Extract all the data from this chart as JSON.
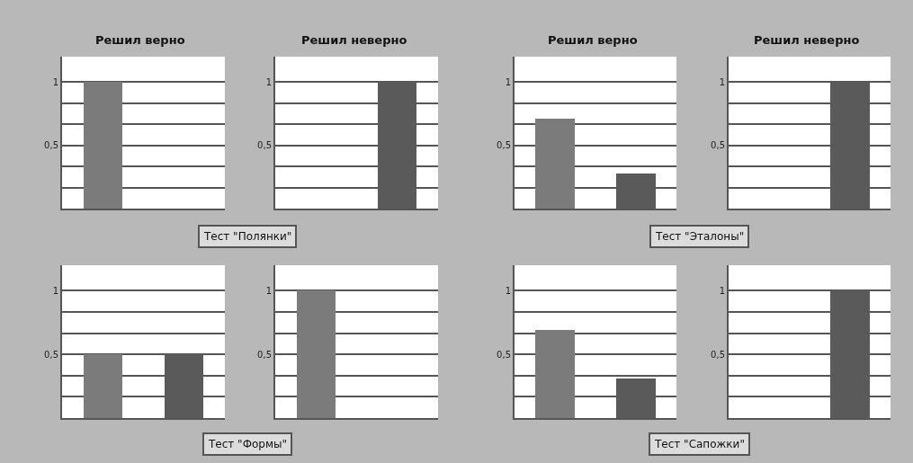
{
  "chart_data": [
    {
      "type": "bar",
      "title": "Решил верно",
      "annotations": [
        "Тест \"Полянки\""
      ],
      "categories": [
        null,
        null
      ],
      "values": [
        1,
        null
      ],
      "colors": [
        "#7b7b7b",
        "#5a5a5a"
      ],
      "ylim": [
        0,
        1.2
      ],
      "yticks": [
        {
          "value": 0,
          "label": null
        },
        {
          "value": 0.1667,
          "label": null
        },
        {
          "value": 0.3333,
          "label": null
        },
        {
          "value": 0.5,
          "label": "0,5"
        },
        {
          "value": 0.6667,
          "label": null
        },
        {
          "value": 0.8333,
          "label": null
        },
        1
      ],
      "grid": "y",
      "tick_labels": "y"
    },
    {
      "type": "bar",
      "title": "Решил неверно",
      "categories": [
        null,
        null
      ],
      "values": [
        null,
        1
      ],
      "colors": [
        "#7b7b7b",
        "#5a5a5a"
      ],
      "ylim": [
        0,
        1.2
      ],
      "yticks": [
        {
          "value": 0,
          "label": null
        },
        {
          "value": 0.1667,
          "label": null
        },
        {
          "value": 0.3333,
          "label": null
        },
        {
          "value": 0.5,
          "label": "0,5"
        },
        {
          "value": 0.6667,
          "label": null
        },
        {
          "value": 0.8333,
          "label": null
        },
        1
      ],
      "grid": "y",
      "tick_labels": "y"
    },
    {
      "type": "bar",
      "title": "Решил верно",
      "annotations": [
        "Тест \"Эталоны\""
      ],
      "categories": [
        null,
        null
      ],
      "values": [
        0.71,
        0.28
      ],
      "colors": [
        "#7b7b7b",
        "#5a5a5a"
      ],
      "ylim": [
        0,
        1.2
      ],
      "yticks": [
        {
          "value": 0,
          "label": null
        },
        {
          "value": 0.1667,
          "label": null
        },
        {
          "value": 0.3333,
          "label": null
        },
        {
          "value": 0.5,
          "label": "0,5"
        },
        {
          "value": 0.6667,
          "label": null
        },
        {
          "value": 0.8333,
          "label": null
        },
        1
      ],
      "grid": "y",
      "tick_labels": "y"
    },
    {
      "type": "bar",
      "title": "Решил неверно",
      "categories": [
        null,
        null
      ],
      "values": [
        null,
        1
      ],
      "colors": [
        "#7b7b7b",
        "#5a5a5a"
      ],
      "ylim": [
        0,
        1.2
      ],
      "yticks": [
        {
          "value": 0,
          "label": null
        },
        {
          "value": 0.1667,
          "label": null
        },
        {
          "value": 0.3333,
          "label": null
        },
        {
          "value": 0.5,
          "label": "0,5"
        },
        {
          "value": 0.6667,
          "label": null
        },
        {
          "value": 0.8333,
          "label": null
        },
        1
      ],
      "grid": "y",
      "tick_labels": "y"
    },
    {
      "type": "bar",
      "annotations": [
        "Тест \"Формы\""
      ],
      "categories": [
        null,
        null
      ],
      "values": [
        0.5,
        0.5
      ],
      "colors": [
        "#7b7b7b",
        "#5a5a5a"
      ],
      "ylim": [
        0,
        1.2
      ],
      "yticks": [
        {
          "value": 0,
          "label": null
        },
        {
          "value": 0.1667,
          "label": null
        },
        {
          "value": 0.3333,
          "label": null
        },
        {
          "value": 0.5,
          "label": "0,5"
        },
        {
          "value": 0.6667,
          "label": null
        },
        {
          "value": 0.8333,
          "label": null
        },
        1
      ],
      "grid": "y",
      "tick_labels": "y"
    },
    {
      "type": "bar",
      "categories": [
        null,
        null
      ],
      "values": [
        1,
        null
      ],
      "colors": [
        "#7b7b7b",
        "#5a5a5a"
      ],
      "ylim": [
        0,
        1.2
      ],
      "yticks": [
        {
          "value": 0,
          "label": null
        },
        {
          "value": 0.1667,
          "label": null
        },
        {
          "value": 0.3333,
          "label": null
        },
        {
          "value": 0.5,
          "label": "0,5"
        },
        {
          "value": 0.6667,
          "label": null
        },
        {
          "value": 0.8333,
          "label": null
        },
        1
      ],
      "grid": "y",
      "tick_labels": "y"
    },
    {
      "type": "bar",
      "annotations": [
        "Тест \"Сапожки\""
      ],
      "categories": [
        null,
        null
      ],
      "values": [
        0.69,
        0.31
      ],
      "colors": [
        "#7b7b7b",
        "#5a5a5a"
      ],
      "ylim": [
        0,
        1.2
      ],
      "yticks": [
        {
          "value": 0,
          "label": null
        },
        {
          "value": 0.1667,
          "label": null
        },
        {
          "value": 0.3333,
          "label": null
        },
        {
          "value": 0.5,
          "label": "0,5"
        },
        {
          "value": 0.6667,
          "label": null
        },
        {
          "value": 0.8333,
          "label": null
        },
        1
      ],
      "grid": "y",
      "tick_labels": "y"
    },
    {
      "type": "bar",
      "categories": [
        null,
        null
      ],
      "values": [
        null,
        1
      ],
      "colors": [
        "#7b7b7b",
        "#5a5a5a"
      ],
      "ylim": [
        0,
        1.2
      ],
      "yticks": [
        {
          "value": 0,
          "label": null
        },
        {
          "value": 0.1667,
          "label": null
        },
        {
          "value": 0.3333,
          "label": null
        },
        {
          "value": 0.5,
          "label": "0,5"
        },
        {
          "value": 0.6667,
          "label": null
        },
        {
          "value": 0.8333,
          "label": null
        },
        1
      ],
      "grid": "y",
      "tick_labels": "y"
    }
  ]
}
